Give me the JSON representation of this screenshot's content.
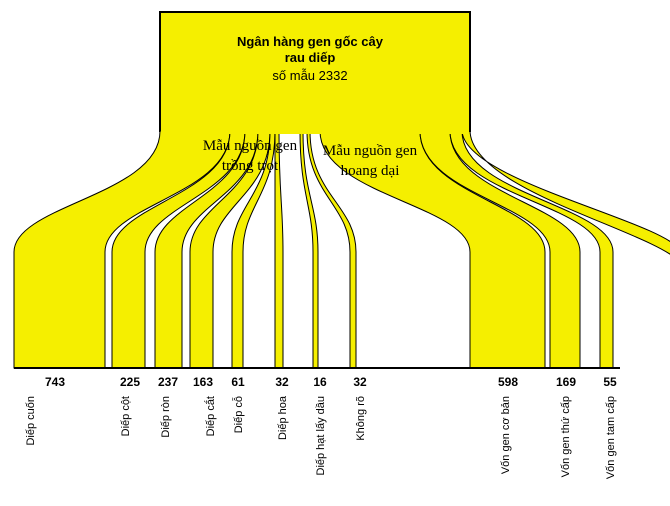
{
  "title": [
    "Ngân hàng gen gốc cây",
    "rau diếp",
    "số mẫu 2332"
  ],
  "groups": [
    {
      "label": [
        "Mẫu nguồn gen",
        "trồng trọt"
      ]
    },
    {
      "label": [
        "Mẫu nguồn gen",
        "hoang dại"
      ]
    }
  ],
  "leaves": [
    {
      "value": 743,
      "label": "Diếp cuốn"
    },
    {
      "value": 225,
      "label": "Diếp cột"
    },
    {
      "value": 237,
      "label": "Diếp ròn"
    },
    {
      "value": 163,
      "label": "Diếp cắt"
    },
    {
      "value": 61,
      "label": "Diếp cỗ"
    },
    {
      "value": 32,
      "label": "Diếp hoa"
    },
    {
      "value": 16,
      "label": "Diếp hạt lấy dầu"
    },
    {
      "value": 32,
      "label": "Không rõ"
    },
    {
      "value": 598,
      "label": "Vốn gen cơ bản"
    },
    {
      "value": 169,
      "label": "Vốn gen thứ cấp"
    },
    {
      "value": 55,
      "label": "Vốn gen tam cấp"
    }
  ]
}
